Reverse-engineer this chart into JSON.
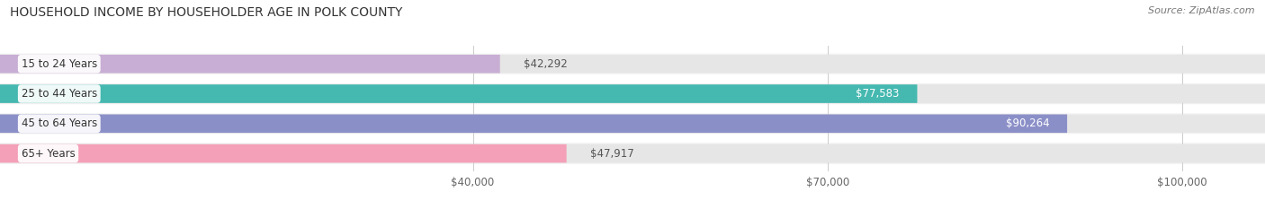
{
  "title": "HOUSEHOLD INCOME BY HOUSEHOLDER AGE IN POLK COUNTY",
  "source": "Source: ZipAtlas.com",
  "categories": [
    "15 to 24 Years",
    "25 to 44 Years",
    "45 to 64 Years",
    "65+ Years"
  ],
  "values": [
    42292,
    77583,
    90264,
    47917
  ],
  "bar_colors": [
    "#c8aed4",
    "#45b8b0",
    "#8b8fc8",
    "#f4a0b8"
  ],
  "value_labels": [
    "$42,292",
    "$77,583",
    "$90,264",
    "$47,917"
  ],
  "value_label_colors": [
    "#555555",
    "#ffffff",
    "#ffffff",
    "#555555"
  ],
  "x_ticks": [
    40000,
    70000,
    100000
  ],
  "x_tick_labels": [
    "$40,000",
    "$70,000",
    "$100,000"
  ],
  "xmin": 0,
  "xmax": 107000,
  "figsize": [
    14.06,
    2.33
  ],
  "dpi": 100,
  "title_fontsize": 10,
  "label_fontsize": 8.5,
  "value_fontsize": 8.5,
  "source_fontsize": 8,
  "bar_height": 0.62,
  "bg_color": "#e8e8e8",
  "row_bg_colors": [
    "#f5f5f5",
    "#f0f0f0",
    "#f5f5f5",
    "#f0f0f0"
  ]
}
